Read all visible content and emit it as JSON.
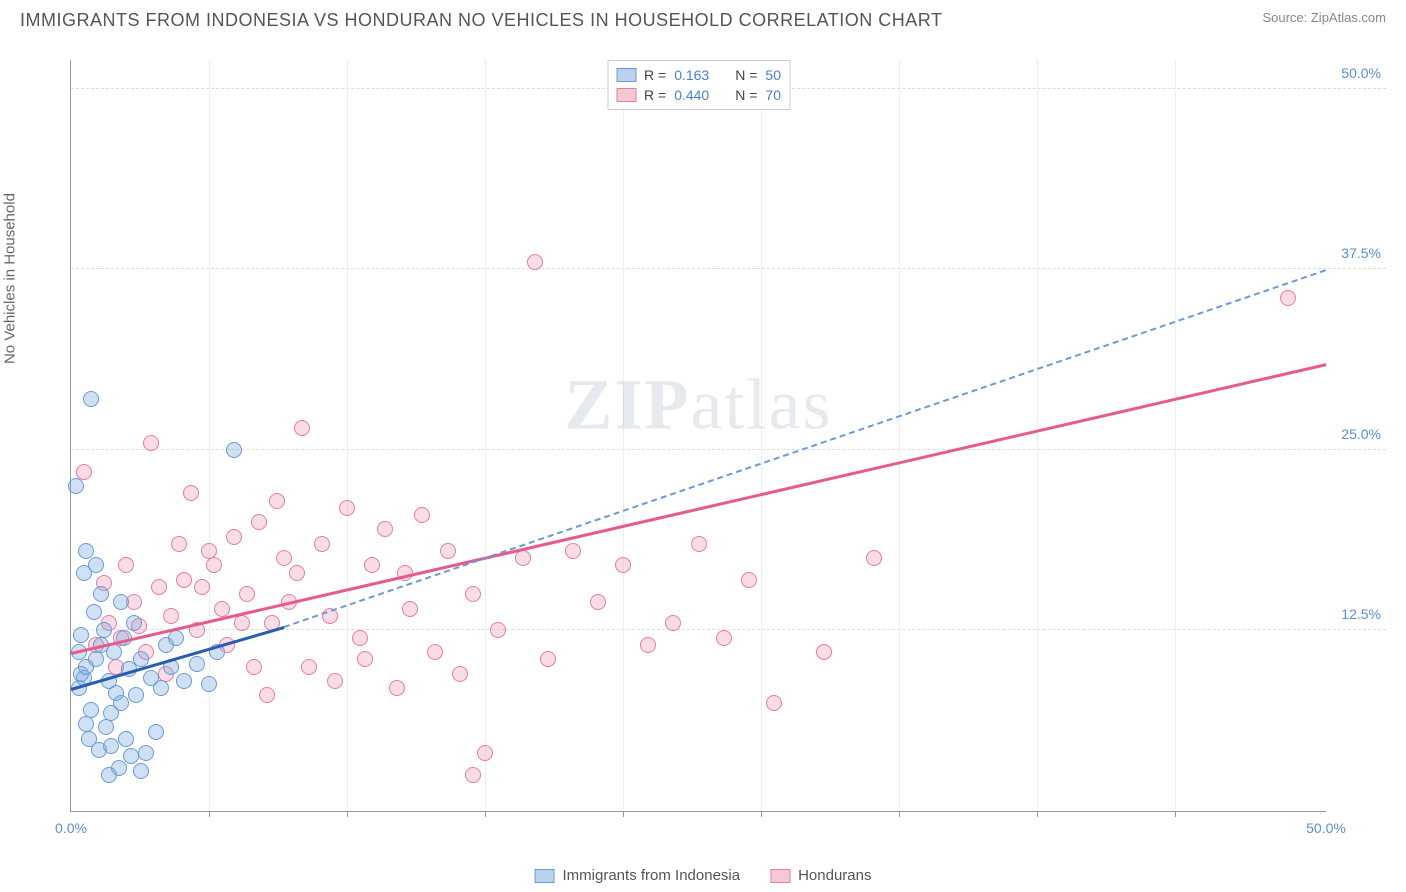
{
  "header": {
    "title": "IMMIGRANTS FROM INDONESIA VS HONDURAN NO VEHICLES IN HOUSEHOLD CORRELATION CHART",
    "source_prefix": "Source: ",
    "source_name": "ZipAtlas.com"
  },
  "watermark": {
    "zip": "ZIP",
    "atlas": "atlas"
  },
  "chart": {
    "type": "scatter",
    "ylabel": "No Vehicles in Household",
    "xlim": [
      0,
      50
    ],
    "ylim": [
      0,
      52
    ],
    "xticks": [
      0,
      50
    ],
    "xtick_labels": [
      "0.0%",
      "50.0%"
    ],
    "yticks": [
      12.5,
      25,
      37.5,
      50
    ],
    "ytick_labels": [
      "12.5%",
      "25.0%",
      "37.5%",
      "50.0%"
    ],
    "xgrid_minor": [
      5.5,
      11,
      16.5,
      22,
      27.5,
      33,
      38.5,
      44
    ],
    "background_color": "#ffffff",
    "grid_color": "#dddddd",
    "series": {
      "a": {
        "label": "Immigrants from Indonesia",
        "color_fill": "rgba(120,165,220,0.35)",
        "color_stroke": "#6a9bd8",
        "R": "0.163",
        "N": "50",
        "trend_solid": {
          "x1": 0,
          "y1": 8.5,
          "x2": 8.5,
          "y2": 12.8
        },
        "trend_dash": {
          "x1": 8.5,
          "y1": 12.8,
          "x2": 50,
          "y2": 37.5
        },
        "points": [
          [
            0.3,
            8.5
          ],
          [
            0.5,
            9.2
          ],
          [
            0.8,
            7.0
          ],
          [
            0.6,
            6.0
          ],
          [
            1.0,
            10.5
          ],
          [
            1.2,
            11.5
          ],
          [
            0.4,
            12.2
          ],
          [
            1.5,
            9.0
          ],
          [
            1.8,
            8.2
          ],
          [
            0.7,
            5.0
          ],
          [
            1.1,
            4.2
          ],
          [
            1.4,
            5.8
          ],
          [
            1.6,
            6.8
          ],
          [
            2.0,
            7.5
          ],
          [
            2.3,
            9.8
          ],
          [
            2.6,
            8.0
          ],
          [
            0.5,
            16.5
          ],
          [
            1.0,
            17.0
          ],
          [
            0.2,
            22.5
          ],
          [
            0.6,
            18.0
          ],
          [
            2.8,
            10.5
          ],
          [
            3.2,
            9.2
          ],
          [
            3.6,
            8.5
          ],
          [
            4.0,
            10.0
          ],
          [
            1.3,
            12.5
          ],
          [
            1.7,
            11.0
          ],
          [
            2.1,
            12.0
          ],
          [
            2.5,
            13.0
          ],
          [
            0.9,
            13.8
          ],
          [
            4.5,
            9.0
          ],
          [
            5.0,
            10.2
          ],
          [
            5.5,
            8.8
          ],
          [
            1.9,
            3.0
          ],
          [
            2.4,
            3.8
          ],
          [
            2.8,
            2.8
          ],
          [
            1.5,
            2.5
          ],
          [
            3.0,
            4.0
          ],
          [
            3.4,
            5.5
          ],
          [
            0.3,
            11.0
          ],
          [
            0.8,
            28.5
          ],
          [
            2.0,
            14.5
          ],
          [
            1.2,
            15.0
          ],
          [
            3.8,
            11.5
          ],
          [
            4.2,
            12.0
          ],
          [
            1.6,
            4.5
          ],
          [
            2.2,
            5.0
          ],
          [
            0.4,
            9.5
          ],
          [
            6.5,
            25.0
          ],
          [
            5.8,
            11.0
          ],
          [
            0.6,
            10.0
          ]
        ]
      },
      "b": {
        "label": "Hondurans",
        "color_fill": "rgba(235,130,160,0.28)",
        "color_stroke": "#e87ca0",
        "R": "0.440",
        "N": "70",
        "trend_solid": {
          "x1": 0,
          "y1": 11.0,
          "x2": 50,
          "y2": 31.0
        },
        "points": [
          [
            1.0,
            11.5
          ],
          [
            1.5,
            13.0
          ],
          [
            2.0,
            12.0
          ],
          [
            2.5,
            14.5
          ],
          [
            3.0,
            11.0
          ],
          [
            3.5,
            15.5
          ],
          [
            4.0,
            13.5
          ],
          [
            4.5,
            16.0
          ],
          [
            5.0,
            12.5
          ],
          [
            5.5,
            18.0
          ],
          [
            6.0,
            14.0
          ],
          [
            6.5,
            19.0
          ],
          [
            7.0,
            15.0
          ],
          [
            7.5,
            20.0
          ],
          [
            8.0,
            13.0
          ],
          [
            8.5,
            17.5
          ],
          [
            9.0,
            16.5
          ],
          [
            9.5,
            10.0
          ],
          [
            10.0,
            18.5
          ],
          [
            10.5,
            9.0
          ],
          [
            11.0,
            21.0
          ],
          [
            11.5,
            12.0
          ],
          [
            12.0,
            17.0
          ],
          [
            12.5,
            19.5
          ],
          [
            13.0,
            8.5
          ],
          [
            13.5,
            14.0
          ],
          [
            14.0,
            20.5
          ],
          [
            14.5,
            11.0
          ],
          [
            15.0,
            18.0
          ],
          [
            15.5,
            9.5
          ],
          [
            16.0,
            15.0
          ],
          [
            16.5,
            4.0
          ],
          [
            17.0,
            12.5
          ],
          [
            18.0,
            17.5
          ],
          [
            19.0,
            10.5
          ],
          [
            20.0,
            18.0
          ],
          [
            21.0,
            14.5
          ],
          [
            22.0,
            17.0
          ],
          [
            23.0,
            11.5
          ],
          [
            24.0,
            13.0
          ],
          [
            25.0,
            18.5
          ],
          [
            26.0,
            12.0
          ],
          [
            27.0,
            16.0
          ],
          [
            28.0,
            7.5
          ],
          [
            30.0,
            11.0
          ],
          [
            32.0,
            17.5
          ],
          [
            0.5,
            23.5
          ],
          [
            1.8,
            10.0
          ],
          [
            3.2,
            25.5
          ],
          [
            4.8,
            22.0
          ],
          [
            6.2,
            11.5
          ],
          [
            7.8,
            8.0
          ],
          [
            9.2,
            26.5
          ],
          [
            2.2,
            17.0
          ],
          [
            3.8,
            9.5
          ],
          [
            5.2,
            15.5
          ],
          [
            6.8,
            13.0
          ],
          [
            8.2,
            21.5
          ],
          [
            16.0,
            2.5
          ],
          [
            18.5,
            38.0
          ],
          [
            48.5,
            35.5
          ],
          [
            1.3,
            15.8
          ],
          [
            4.3,
            18.5
          ],
          [
            7.3,
            10.0
          ],
          [
            10.3,
            13.5
          ],
          [
            13.3,
            16.5
          ],
          [
            2.7,
            12.8
          ],
          [
            5.7,
            17.0
          ],
          [
            8.7,
            14.5
          ],
          [
            11.7,
            10.5
          ]
        ]
      }
    },
    "legend_top": {
      "r_label": "R  =",
      "n_label": "N  ="
    },
    "legend_bottom": {
      "a": "Immigrants from Indonesia",
      "b": "Hondurans"
    }
  }
}
